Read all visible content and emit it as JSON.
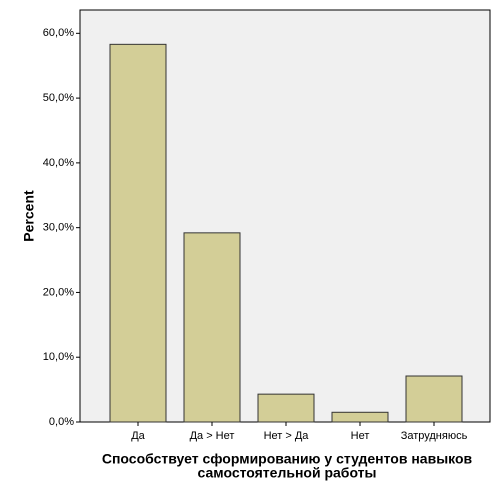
{
  "chart_data": {
    "type": "bar",
    "xlabel": [
      "Способствует сформированию у студентов навыков",
      "самостоятельной работы"
    ],
    "ylabel": "Percent",
    "categories": [
      "Да",
      "Да > Нет",
      "Нет > Да",
      "Нет",
      "Затрудняюсь"
    ],
    "values": [
      58.3,
      29.2,
      4.3,
      1.5,
      7.1
    ],
    "color": "#d3ce97",
    "ylim": [
      0,
      63.6
    ],
    "yticks": [
      {
        "value": 0,
        "label": "0,0%"
      },
      {
        "value": 10,
        "label": "10,0%"
      },
      {
        "value": 20,
        "label": "20,0%"
      },
      {
        "value": 30,
        "label": "30,0%"
      },
      {
        "value": 40,
        "label": "40,0%"
      },
      {
        "value": 50,
        "label": "50,0%"
      },
      {
        "value": 60,
        "label": "60,0%"
      }
    ]
  }
}
